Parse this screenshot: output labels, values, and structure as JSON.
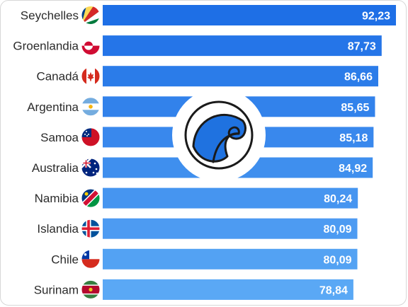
{
  "chart_data": {
    "type": "bar",
    "orientation": "horizontal",
    "categories": [
      "Seychelles",
      "Groenlandia",
      "Canadá",
      "Argentina",
      "Samoa",
      "Australia",
      "Namibia",
      "Islandia",
      "Chile",
      "Surinam"
    ],
    "values": [
      92.23,
      87.73,
      86.66,
      85.65,
      85.18,
      84.92,
      80.24,
      80.09,
      80.09,
      78.84
    ],
    "value_labels": [
      "92,23",
      "87,73",
      "86,66",
      "85,65",
      "85,18",
      "84,92",
      "80,24",
      "80,09",
      "80,09",
      "78,84"
    ],
    "flags": [
      "seychelles-flag-icon",
      "greenland-flag-icon",
      "canada-flag-icon",
      "argentina-flag-icon",
      "samoa-flag-icon",
      "australia-flag-icon",
      "namibia-flag-icon",
      "iceland-flag-icon",
      "chile-flag-icon",
      "suriname-flag-icon"
    ],
    "bar_color_top": "#1e6fe6",
    "bar_color_bottom": "#5aa8f5",
    "title": "",
    "xlabel": "",
    "ylabel": "",
    "xlim": [
      0,
      92.23
    ],
    "grid": false,
    "legend": "none",
    "watermark_icon": "wave-logo-icon"
  }
}
